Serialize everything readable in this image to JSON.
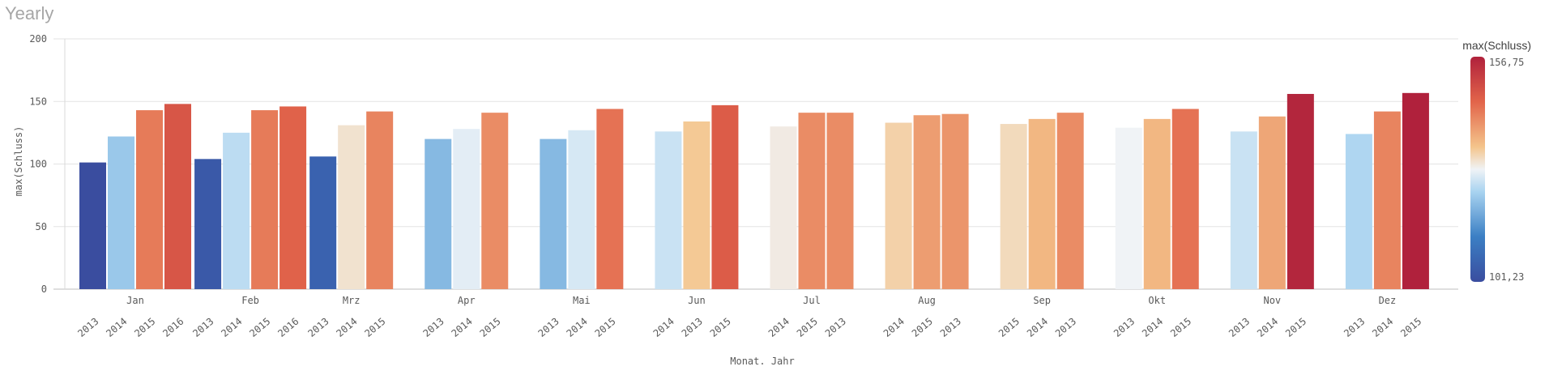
{
  "title": "Yearly",
  "chart_data": {
    "type": "bar",
    "xlabel": "Monat. Jahr",
    "ylabel": "max(Schluss)",
    "ylim": [
      0,
      200
    ],
    "yticks": [
      0,
      50,
      100,
      150,
      200
    ],
    "grid": true,
    "color_legend": {
      "title": "max(Schluss)",
      "max_label": "156,75",
      "min_label": "101,23",
      "min": 101.23,
      "max": 156.75,
      "placement": "right"
    },
    "groups": [
      {
        "month": "Jan",
        "bars": [
          {
            "year": "2013",
            "value": 101.23
          },
          {
            "year": "2014",
            "value": 122
          },
          {
            "year": "2015",
            "value": 143
          },
          {
            "year": "2016",
            "value": 148
          }
        ]
      },
      {
        "month": "Feb",
        "bars": [
          {
            "year": "2013",
            "value": 104
          },
          {
            "year": "2014",
            "value": 125
          },
          {
            "year": "2015",
            "value": 143
          },
          {
            "year": "2016",
            "value": 146
          }
        ]
      },
      {
        "month": "Mrz",
        "bars": [
          {
            "year": "2013",
            "value": 106
          },
          {
            "year": "2014",
            "value": 131
          },
          {
            "year": "2015",
            "value": 142
          }
        ]
      },
      {
        "month": "Apr",
        "bars": [
          {
            "year": "2013",
            "value": 120
          },
          {
            "year": "2014",
            "value": 128
          },
          {
            "year": "2015",
            "value": 141
          }
        ]
      },
      {
        "month": "Mai",
        "bars": [
          {
            "year": "2013",
            "value": 120
          },
          {
            "year": "2014",
            "value": 127
          },
          {
            "year": "2015",
            "value": 144
          }
        ]
      },
      {
        "month": "Jun",
        "bars": [
          {
            "year": "2014",
            "value": 126
          },
          {
            "year": "2013",
            "value": 134
          },
          {
            "year": "2015",
            "value": 147
          }
        ]
      },
      {
        "month": "Jul",
        "bars": [
          {
            "year": "2014",
            "value": 130
          },
          {
            "year": "2015",
            "value": 141
          },
          {
            "year": "2013",
            "value": 141
          }
        ]
      },
      {
        "month": "Aug",
        "bars": [
          {
            "year": "2014",
            "value": 133
          },
          {
            "year": "2015",
            "value": 139
          },
          {
            "year": "2013",
            "value": 140
          }
        ]
      },
      {
        "month": "Sep",
        "bars": [
          {
            "year": "2015",
            "value": 132
          },
          {
            "year": "2014",
            "value": 136
          },
          {
            "year": "2013",
            "value": 141
          }
        ]
      },
      {
        "month": "Okt",
        "bars": [
          {
            "year": "2013",
            "value": 129
          },
          {
            "year": "2014",
            "value": 136
          },
          {
            "year": "2015",
            "value": 144
          }
        ]
      },
      {
        "month": "Nov",
        "bars": [
          {
            "year": "2013",
            "value": 126
          },
          {
            "year": "2014",
            "value": 138
          },
          {
            "year": "2015",
            "value": 156
          }
        ]
      },
      {
        "month": "Dez",
        "bars": [
          {
            "year": "2013",
            "value": 124
          },
          {
            "year": "2014",
            "value": 142
          },
          {
            "year": "2015",
            "value": 156.75
          }
        ]
      }
    ]
  }
}
